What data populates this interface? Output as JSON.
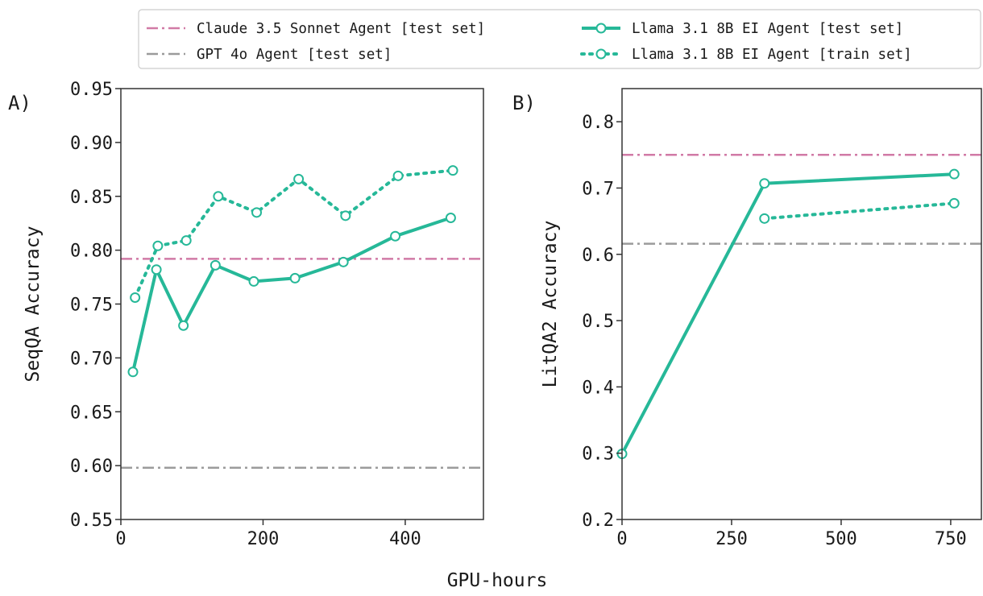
{
  "figure": {
    "xlabel": "GPU-hours",
    "colors": {
      "claude": "#d17aa6",
      "gpt": "#9b9b9b",
      "llama": "#26b898"
    }
  },
  "legend": {
    "placement": "top-right",
    "entries": [
      {
        "label": "Claude 3.5 Sonnet Agent [test set]",
        "style": "dashdot",
        "color": "#d17aa6",
        "marker": false
      },
      {
        "label": "GPT 4o Agent [test set]",
        "style": "dashdot",
        "color": "#9b9b9b",
        "marker": false
      },
      {
        "label": "Llama 3.1 8B EI Agent [test set]",
        "style": "solid",
        "color": "#26b898",
        "marker": true
      },
      {
        "label": "Llama 3.1 8B EI Agent [train set]",
        "style": "dotted",
        "color": "#26b898",
        "marker": true
      }
    ]
  },
  "chart_data": [
    {
      "type": "line",
      "panel_label": "A)",
      "xlabel": "",
      "ylabel": "SeqQA Accuracy",
      "xlim": [
        0,
        510
      ],
      "ylim": [
        0.55,
        0.95
      ],
      "xticks": [
        0,
        200,
        400
      ],
      "xtick_labels": [
        "0",
        "200",
        "400"
      ],
      "yticks": [
        0.55,
        0.6,
        0.65,
        0.7,
        0.75,
        0.8,
        0.85,
        0.9,
        0.95
      ],
      "ytick_labels": [
        "0.55",
        "0.60",
        "0.65",
        "0.70",
        "0.75",
        "0.80",
        "0.85",
        "0.90",
        "0.95"
      ],
      "grid": false,
      "hlines": [
        {
          "name": "Claude 3.5 Sonnet Agent [test set]",
          "y": 0.792,
          "style": "dashdot",
          "color": "#d17aa6"
        },
        {
          "name": "GPT 4o Agent [test set]",
          "y": 0.598,
          "style": "dashdot",
          "color": "#9b9b9b"
        }
      ],
      "series": [
        {
          "name": "Llama 3.1 8B EI Agent [test set]",
          "style": "solid",
          "color": "#26b898",
          "x": [
            17,
            50,
            88,
            133,
            187,
            245,
            313,
            386,
            464
          ],
          "y": [
            0.687,
            0.782,
            0.73,
            0.786,
            0.771,
            0.774,
            0.789,
            0.813,
            0.83
          ]
        },
        {
          "name": "Llama 3.1 8B EI Agent [train set]",
          "style": "dotted",
          "color": "#26b898",
          "x": [
            20,
            52,
            92,
            137,
            191,
            250,
            316,
            390,
            467
          ],
          "y": [
            0.756,
            0.804,
            0.809,
            0.85,
            0.835,
            0.866,
            0.832,
            0.869,
            0.874
          ]
        }
      ]
    },
    {
      "type": "line",
      "panel_label": "B)",
      "xlabel": "",
      "ylabel": "LitQA2 Accuracy",
      "xlim": [
        0,
        820
      ],
      "ylim": [
        0.2,
        0.85
      ],
      "xticks": [
        0,
        250,
        500,
        750
      ],
      "xtick_labels": [
        "0",
        "250",
        "500",
        "750"
      ],
      "yticks": [
        0.2,
        0.3,
        0.4,
        0.5,
        0.6,
        0.7,
        0.8
      ],
      "ytick_labels": [
        "0.2",
        "0.3",
        "0.4",
        "0.5",
        "0.6",
        "0.7",
        "0.8"
      ],
      "grid": false,
      "hlines": [
        {
          "name": "Claude 3.5 Sonnet Agent [test set]",
          "y": 0.75,
          "style": "dashdot",
          "color": "#d17aa6"
        },
        {
          "name": "GPT 4o Agent [test set]",
          "y": 0.616,
          "style": "dashdot",
          "color": "#9b9b9b"
        }
      ],
      "series": [
        {
          "name": "Llama 3.1 8B EI Agent [test set]",
          "style": "solid",
          "color": "#26b898",
          "x": [
            0,
            325,
            758
          ],
          "y": [
            0.299,
            0.707,
            0.721
          ]
        },
        {
          "name": "Llama 3.1 8B EI Agent [train set]",
          "style": "dotted",
          "color": "#26b898",
          "x": [
            325,
            758
          ],
          "y": [
            0.654,
            0.677
          ]
        }
      ]
    }
  ]
}
